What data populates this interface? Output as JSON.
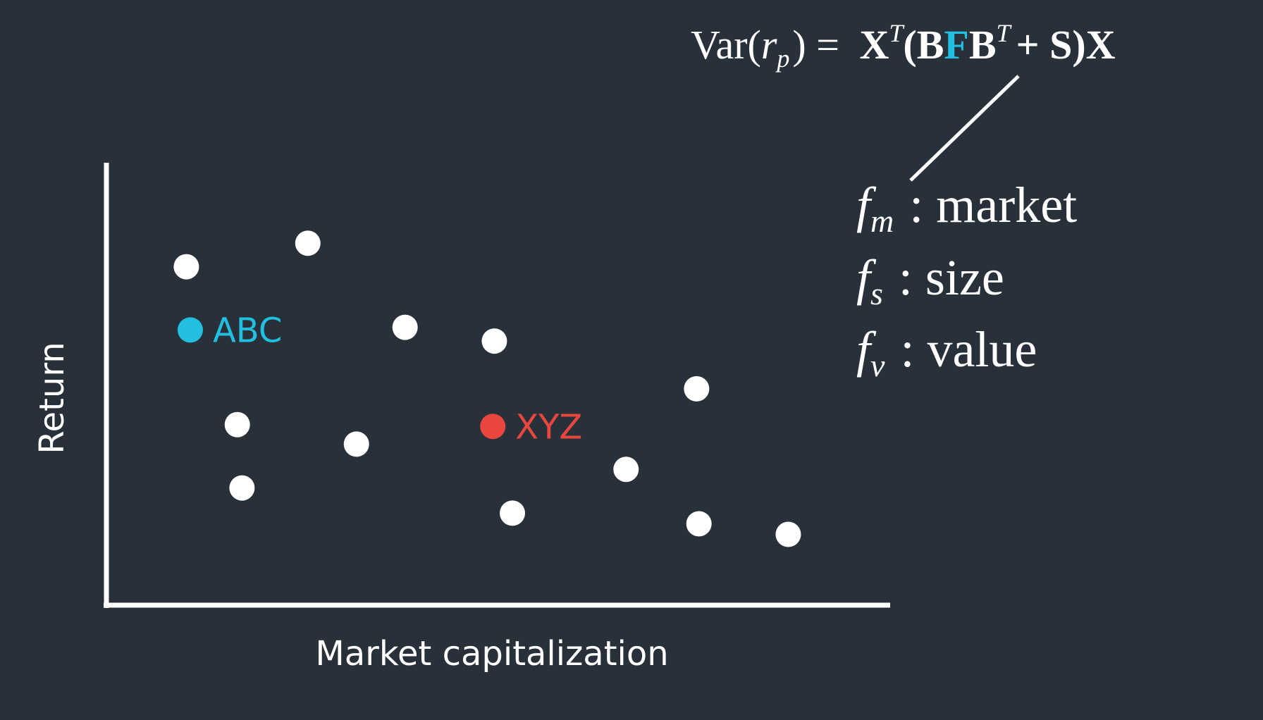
{
  "colors": {
    "background": "#283039",
    "foreground": "#ffffff",
    "highlight_blue": "#22bfe0",
    "highlight_red": "#e8463e"
  },
  "formula": {
    "lhs": "Var(",
    "lhs_r": "r",
    "lhs_sub": "p",
    "lhs_close": ") =",
    "rhs_x": "X",
    "rhs_t1": "T",
    "rhs_open_b": "(B",
    "rhs_f": "F",
    "rhs_b2": "B",
    "rhs_t2": "T",
    "rhs_plus_s": "+ S)X"
  },
  "factors": [
    {
      "symbol": "f",
      "sub": "m",
      "label": ": market"
    },
    {
      "symbol": "f",
      "sub": "s",
      "label": ": size"
    },
    {
      "symbol": "f",
      "sub": "v",
      "label": ": value"
    }
  ],
  "chart_data": {
    "type": "scatter",
    "xlabel": "Market capitalization",
    "ylabel": "Return",
    "xlim": [
      0,
      100
    ],
    "ylim": [
      0,
      100
    ],
    "grid": false,
    "points": [
      {
        "x": 10.2,
        "y": 76.5
      },
      {
        "x": 25.7,
        "y": 81.8
      },
      {
        "x": 38.1,
        "y": 62.8
      },
      {
        "x": 49.5,
        "y": 59.7
      },
      {
        "x": 16.7,
        "y": 40.8
      },
      {
        "x": 31.9,
        "y": 36.4
      },
      {
        "x": 17.3,
        "y": 26.5
      },
      {
        "x": 51.8,
        "y": 20.8
      },
      {
        "x": 66.3,
        "y": 30.7
      },
      {
        "x": 75.3,
        "y": 48.9
      },
      {
        "x": 75.6,
        "y": 18.4
      },
      {
        "x": 87.0,
        "y": 16.0
      }
    ],
    "highlighted": [
      {
        "label": "ABC",
        "x": 10.7,
        "y": 62.2,
        "color": "#22bfe0"
      },
      {
        "label": "XYZ",
        "x": 49.3,
        "y": 40.4,
        "color": "#e8463e"
      }
    ]
  }
}
